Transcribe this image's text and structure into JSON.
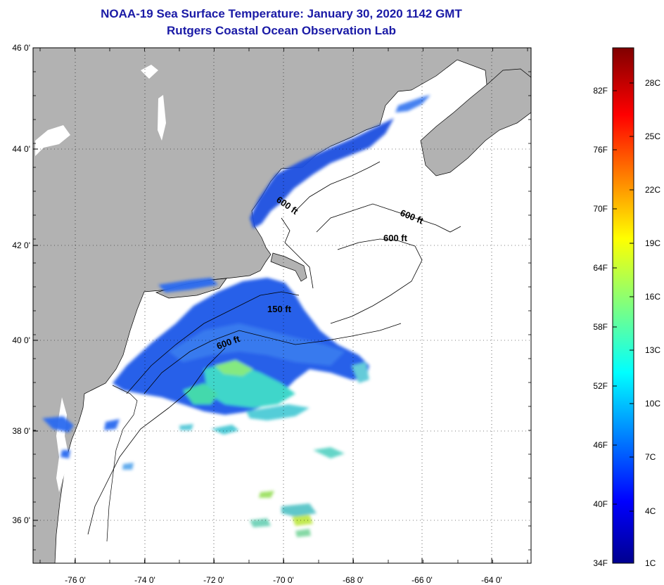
{
  "title": "NOAA-19 Sea Surface Temperature:  January 30, 2020 1142 GMT",
  "subtitle": "Rutgers Coastal Ocean Observation Lab",
  "axes": {
    "lat_labels": [
      "46 0'",
      "44 0'",
      "42 0'",
      "40 0'",
      "38 0'",
      "36 0'"
    ],
    "lon_labels": [
      "-76 0'",
      "-74 0'",
      "-72 0'",
      "-70 0'",
      "-68 0'",
      "-66 0'",
      "-64 0'"
    ]
  },
  "contour_labels": [
    "600 ft",
    "600 ft",
    "600 ft",
    "150 ft",
    "600 ft"
  ],
  "colorbar": {
    "fahrenheit": [
      "82F",
      "76F",
      "70F",
      "64F",
      "58F",
      "52F",
      "46F",
      "40F",
      "34F"
    ],
    "celsius": [
      "28C",
      "25C",
      "22C",
      "19C",
      "16C",
      "13C",
      "10C",
      "7C",
      "4C",
      "1C"
    ]
  },
  "colors": {
    "land": "#b2b2b2",
    "water": "#ffffff",
    "title": "#1a1aa6",
    "sst_dominant": "#1f5be8"
  }
}
